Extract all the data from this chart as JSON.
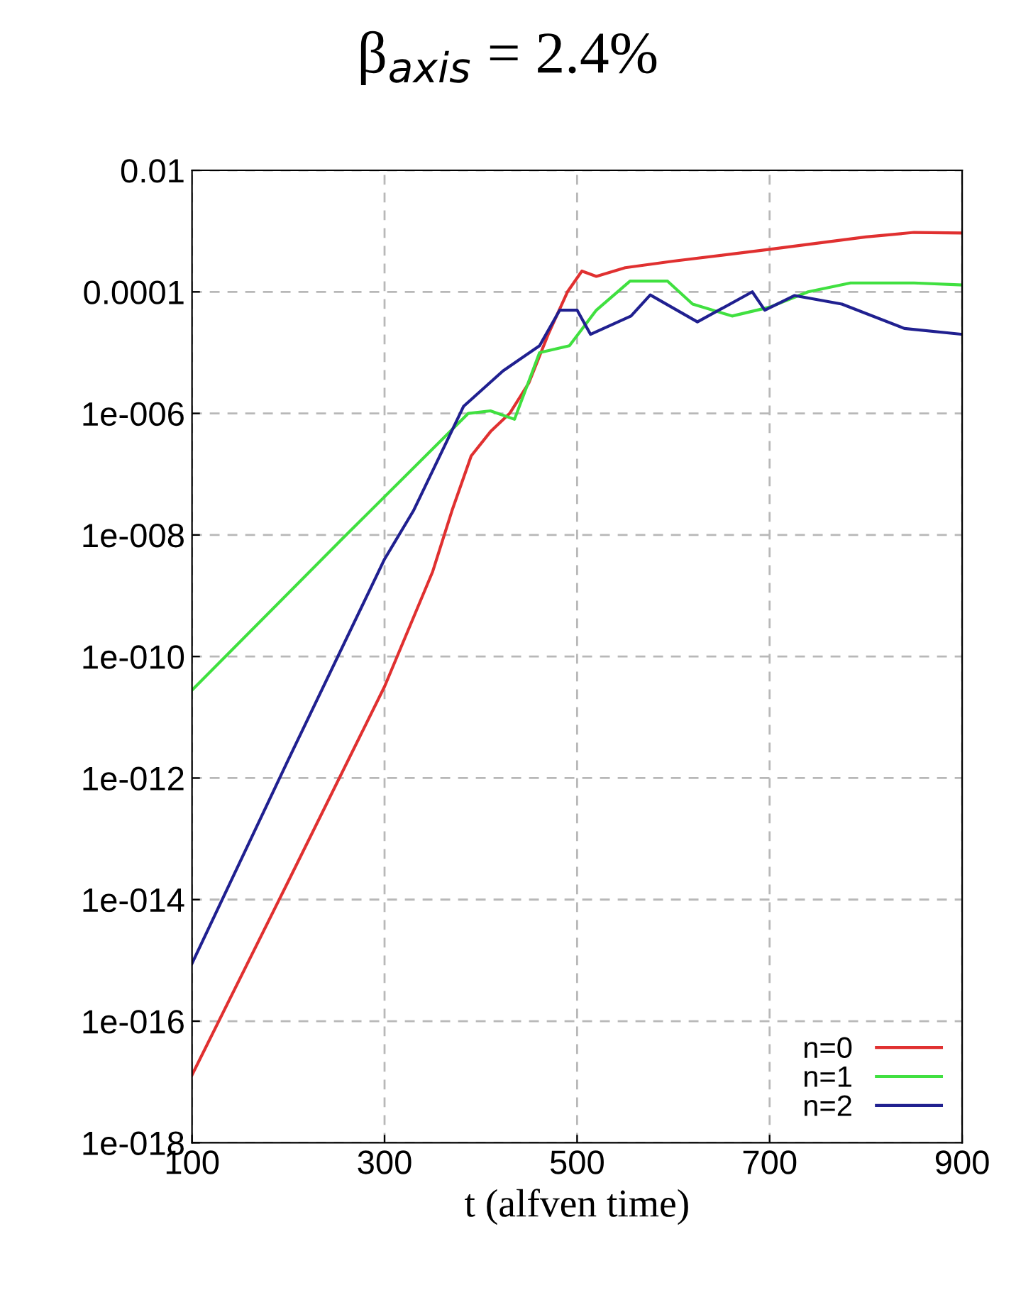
{
  "chart_data": {
    "type": "line",
    "title": "β$_{axis}$ = 2.4%",
    "xlabel": "t (alfven time)",
    "log": "y",
    "grid": true,
    "legend": "bottom right",
    "line_style": "solid",
    "marker": "none",
    "xlim": [
      100,
      900
    ],
    "xticks": [
      100,
      300,
      500,
      700,
      900
    ],
    "ylim": [
      1e-18,
      0.01
    ],
    "yticks": [
      {
        "value": 1e-18,
        "label": "1e-018"
      },
      {
        "value": 1e-16,
        "label": "1e-016"
      },
      {
        "value": 1e-14,
        "label": "1e-014"
      },
      {
        "value": 1e-12,
        "label": "1e-012"
      },
      {
        "value": 1e-10,
        "label": "1e-010"
      },
      {
        "value": 1e-08,
        "label": "1e-008"
      },
      {
        "value": 1e-06,
        "label": "1e-006"
      },
      {
        "value": 0.0001,
        "label": "0.0001"
      },
      {
        "value": 0.01,
        "label": "0.01"
      }
    ],
    "series": [
      {
        "name": "n=0",
        "color": "#e03030",
        "x": [
          100,
          200,
          300,
          350,
          370,
          390,
          410,
          430,
          450,
          470,
          490,
          505,
          520,
          550,
          600,
          700,
          800,
          850,
          900
        ],
        "values": [
          1.3e-17,
          2e-14,
          3.2e-11,
          2.5e-09,
          2.5e-08,
          2e-07,
          5e-07,
          1e-06,
          3.2e-06,
          2e-05,
          0.0001,
          0.00022,
          0.00018,
          0.00025,
          0.00032,
          0.0005,
          0.0008,
          0.00095,
          0.00093
        ]
      },
      {
        "name": "n=1",
        "color": "#40e040",
        "x": [
          100,
          255,
          387,
          410,
          435,
          461,
          492,
          520,
          555,
          594,
          620,
          661,
          700,
          740,
          784,
          850,
          900
        ],
        "values": [
          2.8e-11,
          8.3e-09,
          1e-06,
          1.1e-06,
          8e-07,
          1e-05,
          1.3e-05,
          5e-05,
          0.00015,
          0.00015,
          6.3e-05,
          4e-05,
          5.6e-05,
          0.0001,
          0.00014,
          0.00014,
          0.00013
        ]
      },
      {
        "name": "n=2",
        "color": "#202090",
        "x": [
          100,
          200,
          300,
          330,
          382,
          423,
          461,
          482,
          500,
          514,
          556,
          576,
          625,
          682,
          695,
          726,
          775,
          840,
          900
        ],
        "values": [
          8.9e-16,
          2e-12,
          4e-09,
          2.5e-08,
          1.3e-06,
          5e-06,
          1.3e-05,
          5e-05,
          5e-05,
          2e-05,
          4e-05,
          8.9e-05,
          3.2e-05,
          0.0001,
          5e-05,
          8.7e-05,
          6.3e-05,
          2.5e-05,
          2e-05
        ]
      }
    ]
  }
}
